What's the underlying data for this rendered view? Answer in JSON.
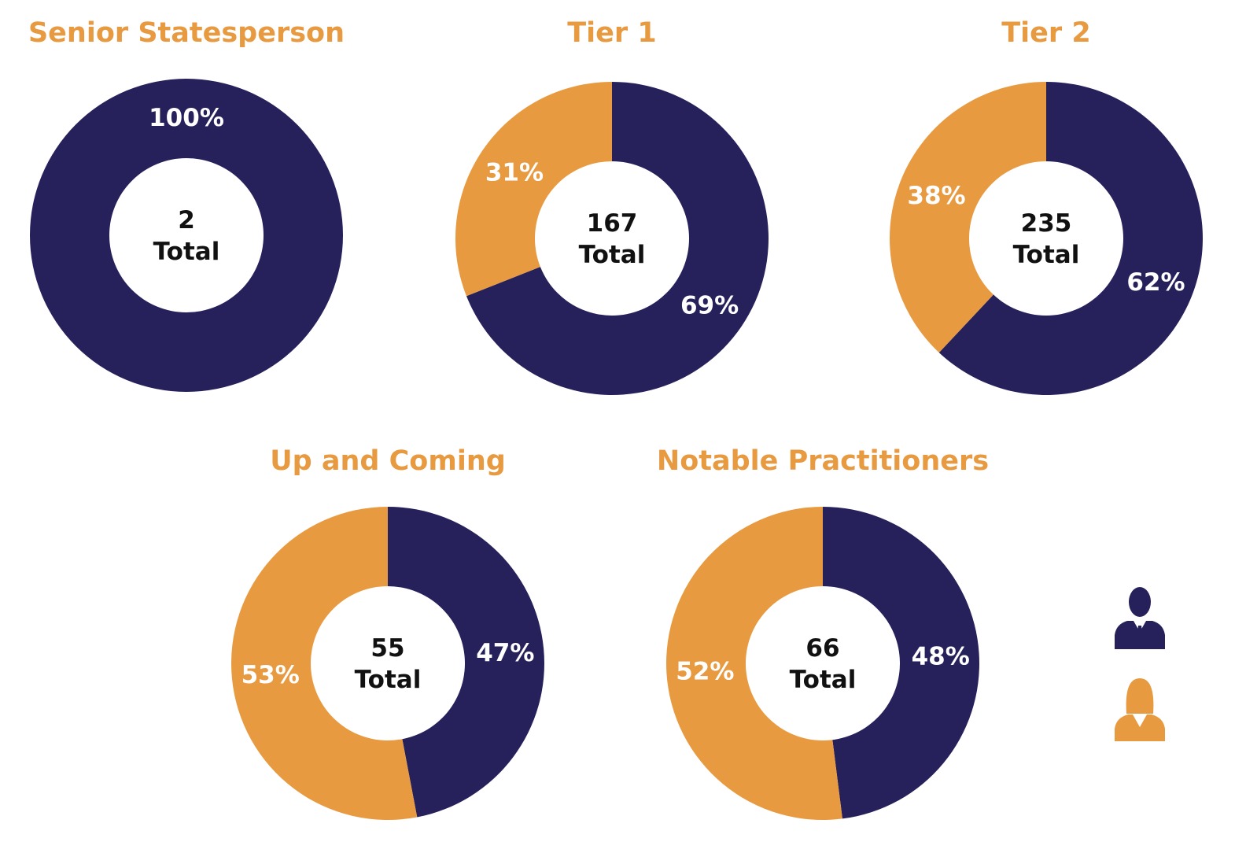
{
  "colors": {
    "male": "#26215B",
    "female": "#E89A41",
    "title": "#E89A41",
    "center_hole": "#ffffff",
    "center_text": "#111111",
    "slice_text": "#ffffff"
  },
  "legend": {
    "items": [
      {
        "icon": "male-person-icon",
        "color": "#26215B"
      },
      {
        "icon": "female-person-icon",
        "color": "#E89A41"
      }
    ],
    "placement": "right"
  },
  "chart_data": [
    {
      "type": "pie",
      "title": "Senior Statesperson",
      "center_lines": [
        "2",
        "Total"
      ],
      "slices": [
        {
          "key": "male",
          "value": 100,
          "label": "100%"
        }
      ]
    },
    {
      "type": "pie",
      "title": "Tier 1",
      "center_lines": [
        "167",
        "Total"
      ],
      "slices": [
        {
          "key": "male",
          "value": 69,
          "label": "69%"
        },
        {
          "key": "female",
          "value": 31,
          "label": "31%"
        }
      ]
    },
    {
      "type": "pie",
      "title": "Tier 2",
      "center_lines": [
        "235",
        "Total"
      ],
      "slices": [
        {
          "key": "male",
          "value": 62,
          "label": "62%"
        },
        {
          "key": "female",
          "value": 38,
          "label": "38%"
        }
      ]
    },
    {
      "type": "pie",
      "title": "Up and Coming",
      "center_lines": [
        "55",
        "Total"
      ],
      "slices": [
        {
          "key": "male",
          "value": 47,
          "label": "47%"
        },
        {
          "key": "female",
          "value": 53,
          "label": "53%"
        }
      ]
    },
    {
      "type": "pie",
      "title": "Notable Practitioners",
      "center_lines": [
        "66",
        "Total"
      ],
      "slices": [
        {
          "key": "male",
          "value": 48,
          "label": "48%"
        },
        {
          "key": "female",
          "value": 52,
          "label": "52%"
        }
      ]
    }
  ]
}
